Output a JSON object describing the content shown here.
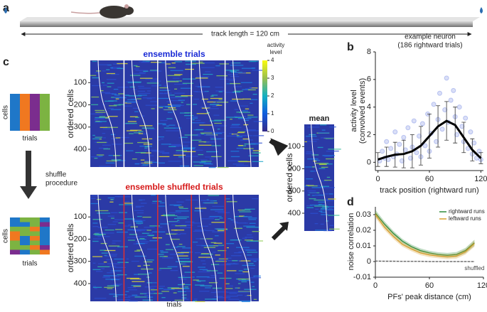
{
  "panel_a": {
    "label": "a",
    "track_label": "track length = 120 cm"
  },
  "panel_c": {
    "label": "c",
    "cells_label": "cells",
    "trials_label": "trials",
    "shuffle_label": [
      "shuffle",
      "procedure"
    ],
    "cells_label_2": "cells",
    "trials_label_2": "trials",
    "ensemble_title": "ensemble trials",
    "shuffled_title": "ensemble shuffled trials",
    "colorbar_title": [
      "activity",
      "level"
    ],
    "colorbar_lim": [
      0,
      4
    ],
    "colorbar_ticks": [
      0,
      1,
      2,
      3,
      4
    ],
    "ylabel": "ordered cells",
    "ylim": [
      0,
      480
    ],
    "yticks": [
      100,
      200,
      300,
      400
    ],
    "xlabel": "trials",
    "mean_title": "mean",
    "mean_ylabel": "ordered cells",
    "mean_yticks": [
      100,
      200,
      300,
      400
    ]
  },
  "chart_data": [
    {
      "type": "scatter",
      "label": "b",
      "title": "example neuron",
      "subtitle": "(186 rightward trials)",
      "xlabel": "track position (rightward run)",
      "ylabel": [
        "activity level",
        "(convolved events)"
      ],
      "xlim": [
        -3,
        123
      ],
      "ylim": [
        -0.6,
        8
      ],
      "xticks": [
        0,
        60,
        120
      ],
      "yticks": [
        0,
        2,
        4,
        6,
        8
      ],
      "points": {
        "color": "#6a7fe0",
        "x": [
          2,
          5,
          8,
          10,
          12,
          15,
          18,
          20,
          22,
          25,
          28,
          30,
          32,
          35,
          38,
          40,
          42,
          45,
          48,
          50,
          52,
          55,
          58,
          60,
          62,
          65,
          68,
          70,
          72,
          75,
          78,
          80,
          82,
          85,
          88,
          90,
          92,
          95,
          98,
          100,
          102,
          105,
          108,
          110,
          112,
          115,
          118,
          120
        ],
        "y": [
          0.1,
          0.8,
          0.3,
          1.5,
          0.2,
          1.0,
          0.4,
          2.2,
          0.6,
          1.3,
          0.1,
          1.8,
          0.9,
          2.5,
          0.3,
          1.1,
          3.0,
          0.7,
          1.9,
          0.4,
          2.8,
          1.2,
          3.5,
          0.8,
          2.1,
          4.2,
          1.5,
          3.1,
          5.0,
          2.4,
          3.8,
          6.1,
          2.9,
          4.5,
          5.2,
          3.3,
          2.0,
          4.0,
          2.6,
          1.5,
          3.2,
          1.0,
          2.2,
          0.6,
          1.4,
          0.3,
          0.8,
          0.2
        ]
      },
      "mean": {
        "color": "#000000",
        "x": [
          0,
          10,
          20,
          30,
          40,
          50,
          60,
          70,
          80,
          90,
          100,
          110,
          120
        ],
        "values": [
          0.2,
          0.4,
          0.55,
          0.6,
          0.8,
          1.2,
          1.9,
          2.6,
          3.0,
          2.7,
          1.8,
          0.9,
          0.3
        ],
        "errors": [
          0.5,
          0.7,
          0.9,
          1.0,
          1.2,
          1.4,
          1.6,
          1.5,
          1.4,
          1.3,
          1.1,
          0.8,
          0.4
        ]
      }
    },
    {
      "type": "line",
      "label": "d",
      "xlabel": "PFs' peak distance (cm)",
      "ylabel": "noise correlation",
      "xlim": [
        0,
        120
      ],
      "ylim": [
        -0.01,
        0.035
      ],
      "xticks": [
        0,
        60,
        120
      ],
      "yticks": [
        -0.01,
        0,
        0.01,
        0.02,
        0.03
      ],
      "x": [
        0,
        10,
        20,
        30,
        40,
        50,
        60,
        70,
        80,
        90,
        100,
        110
      ],
      "series": [
        {
          "name": "rightward runs",
          "color": "#2e8b3a",
          "values": [
            0.031,
            0.024,
            0.018,
            0.013,
            0.0095,
            0.007,
            0.0055,
            0.0045,
            0.004,
            0.0045,
            0.007,
            0.012
          ],
          "errors": [
            0.002,
            0.0018,
            0.0016,
            0.0015,
            0.0014,
            0.0014,
            0.0014,
            0.0014,
            0.0015,
            0.0016,
            0.0017,
            0.002
          ]
        },
        {
          "name": "leftward runs",
          "color": "#d9a030",
          "values": [
            0.03,
            0.022,
            0.016,
            0.011,
            0.008,
            0.0055,
            0.0042,
            0.0035,
            0.003,
            0.0035,
            0.0062,
            0.0115
          ],
          "errors": [
            0.002,
            0.0018,
            0.0016,
            0.0015,
            0.0014,
            0.0014,
            0.0014,
            0.0014,
            0.0015,
            0.0016,
            0.0017,
            0.002
          ]
        },
        {
          "name": "shuffled",
          "color": "#666666",
          "dashed": true,
          "in_legend": false,
          "values": [
            0.0003,
            0.0002,
            0.0002,
            0.0001,
            0.0001,
            0.0001,
            0,
            0,
            0,
            0,
            0,
            0
          ],
          "errors": [
            0.0004,
            0.0004,
            0.0004,
            0.0004,
            0.0004,
            0.0004,
            0.0004,
            0.0004,
            0.0004,
            0.0004,
            0.0004,
            0.0004
          ]
        }
      ]
    }
  ]
}
